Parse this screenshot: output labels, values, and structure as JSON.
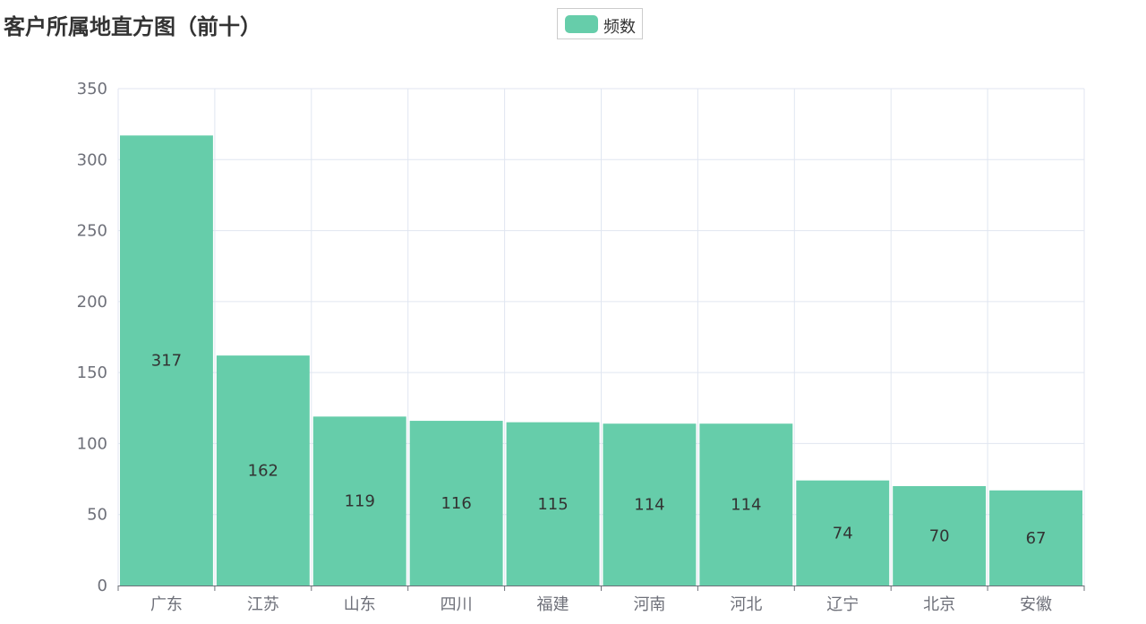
{
  "chart_data": {
    "type": "bar",
    "title": "客户所属地直方图（前十）",
    "categories": [
      "广东",
      "江苏",
      "山东",
      "四川",
      "福建",
      "河南",
      "河北",
      "辽宁",
      "北京",
      "安徽"
    ],
    "series": [
      {
        "name": "频数",
        "values": [
          317,
          162,
          119,
          116,
          115,
          114,
          114,
          74,
          70,
          67
        ]
      }
    ],
    "ylim": [
      0,
      350
    ],
    "yticks": [
      0,
      50,
      100,
      150,
      200,
      250,
      300,
      350
    ],
    "grid": true,
    "legend": "top-center",
    "data_labels": "inside-middle",
    "bar_color": "#66cdaa"
  }
}
